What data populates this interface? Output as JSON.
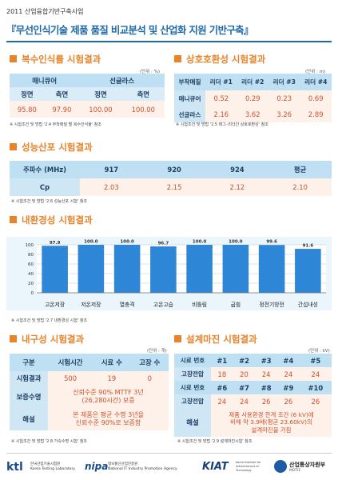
{
  "header": {
    "project": "2011 산업융합기반구축사업",
    "title": "『무선인식기술 제품 품질 비교분석 및 산업화 지원 기반구축』"
  },
  "rec_rate": {
    "section_title": "복수인식률 시험결과",
    "unit": "(단위 : %)",
    "col_groups": [
      "매니큐어",
      "선글라스"
    ],
    "sub_headers": [
      "정면",
      "측면",
      "정면",
      "측면"
    ],
    "values": [
      "95.80",
      "97.90",
      "100.00",
      "100.00"
    ],
    "note": "※ 시험조건 및 방법 '2.4 부착매질 별 복수인식율' 참조"
  },
  "interop": {
    "section_title": "상호호환성 시험결과",
    "unit": "(단위 : m)",
    "headers": [
      "부착매질",
      "리더 #1",
      "리더 #2",
      "리더 #3",
      "리더 #4"
    ],
    "rows": [
      {
        "label": "매니큐어",
        "values": [
          "0.52",
          "0.29",
          "0.23",
          "0.69"
        ]
      },
      {
        "label": "선글라스",
        "values": [
          "2.16",
          "3.62",
          "3.26",
          "2.89"
        ]
      }
    ],
    "note": "※ 시험조건 및 방법 '2.5 태그–리더간 상호호환성' 참조"
  },
  "perf": {
    "section_title": "성능산포 시험결과",
    "headers": [
      "주파수 (MHz)",
      "917",
      "920",
      "924",
      "평균"
    ],
    "row_label": "Cp",
    "values": [
      "2.03",
      "2.15",
      "2.12",
      "2.10"
    ],
    "note": "※ 시험조건 및 방법 '2.6 성능산포 시험' 참조"
  },
  "env": {
    "section_title": "내환경성 시험결과",
    "note": "※ 시험조건 및 방법 '2.7 내환경성 시험' 참조"
  },
  "chart_data": {
    "type": "bar",
    "categories": [
      "고온저장",
      "저온저장",
      "열충격",
      "고온고습",
      "비틀림",
      "굽힘",
      "정전기방전",
      "간섭내성"
    ],
    "values": [
      97.9,
      100.0,
      100.0,
      96.7,
      100.0,
      100.0,
      99.6,
      91.6
    ],
    "value_labels": [
      "97.9",
      "100.0",
      "100.0",
      "96.7",
      "100.0",
      "100.0",
      "99.6",
      "91.6"
    ],
    "ylim": [
      0,
      100
    ],
    "yticks": [
      "0",
      "20",
      "40",
      "60",
      "80",
      "100"
    ],
    "grid": true,
    "bar_color": "#2e86d6"
  },
  "durability": {
    "section_title": "내구성 시험결과",
    "unit": "(단위 : 개)",
    "headers": [
      "구분",
      "시험시간",
      "시료 수",
      "고장 수"
    ],
    "result_label": "시험결과",
    "result_values": [
      "500",
      "19",
      "0"
    ],
    "life_label": "보증수명",
    "life_text": [
      "신뢰수준 90% MTTF 3년",
      "(26,280시간) 보증"
    ],
    "interp_label": "해설",
    "interp_text": [
      "본 제품은 평균 수명 3년을",
      "신뢰수준 90%로 보증함"
    ],
    "note": "※ 시험조건 및 방법 '2.8 가속수명 시험' 참조"
  },
  "margin": {
    "section_title": "설계마진 시험결과",
    "unit": "(단위 : kV)",
    "sample_label": "시료 번호",
    "samples1": [
      "#1",
      "#2",
      "#3",
      "#4",
      "#5"
    ],
    "voltage_label": "고장전압",
    "voltages1": [
      "18",
      "20",
      "24",
      "24",
      "24"
    ],
    "samples2": [
      "#6",
      "#7",
      "#8",
      "#9",
      "#10"
    ],
    "voltages2": [
      "24",
      "24",
      "26",
      "26",
      "26"
    ],
    "interp_label": "해설",
    "interp_text": [
      "제품 사용환경 한계 조건 (6 kV)에",
      "비해 약 3.9배(평균 23.60kV)의",
      "설계마진을 가짐"
    ],
    "note": "※ 시험조건 및 방법 '2.9 설계마진시험' 참조"
  },
  "footer": {
    "ktl_logo": "ktl",
    "ktl_sub1": "한국산업기술시험원",
    "ktl_sub2": "Korea Testing Laboratory",
    "nipa_logo": "nipa",
    "nipa_sub1": "정보통신산업진흥원",
    "nipa_sub2": "National IT Industry Promotion Agency",
    "kiat_logo": "KIAT",
    "kiat_sub": "Korea Institute for Advancement of Technology",
    "motie_name": "산업통상자원부",
    "motie_sub": "MOTIE"
  }
}
